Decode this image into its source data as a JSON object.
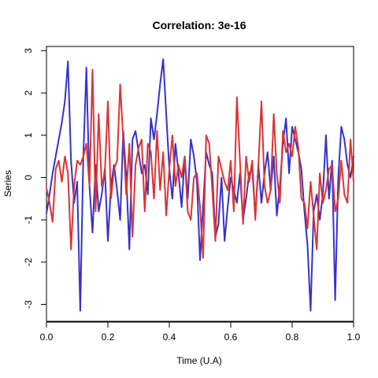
{
  "chart_data": {
    "type": "line",
    "title": "Correlation: 3e-16",
    "xlabel": "Time (U.A)",
    "ylabel": "Series",
    "xlim": [
      0,
      1
    ],
    "ylim": [
      -3.4,
      3.1
    ],
    "x_ticks": [
      {
        "value": 0.0,
        "label": "0.0"
      },
      {
        "value": 0.2,
        "label": "0.2"
      },
      {
        "value": 0.4,
        "label": "0.4"
      },
      {
        "value": 0.6,
        "label": "0.6"
      },
      {
        "value": 0.8,
        "label": "0.8"
      },
      {
        "value": 1.0,
        "label": "1.0"
      }
    ],
    "y_ticks": [
      {
        "value": -3,
        "label": "-3"
      },
      {
        "value": -2,
        "label": "-2"
      },
      {
        "value": -1,
        "label": "-1"
      },
      {
        "value": 0,
        "label": "0"
      },
      {
        "value": 1,
        "label": "1"
      },
      {
        "value": 2,
        "label": "2"
      },
      {
        "value": 3,
        "label": "3"
      }
    ],
    "grid": false,
    "legend": "none",
    "x": [
      0.0,
      0.01,
      0.02,
      0.03,
      0.04,
      0.05,
      0.06,
      0.07,
      0.08,
      0.09,
      0.1,
      0.11,
      0.12,
      0.13,
      0.14,
      0.15,
      0.16,
      0.17,
      0.18,
      0.19,
      0.2,
      0.21,
      0.22,
      0.23,
      0.24,
      0.25,
      0.26,
      0.27,
      0.28,
      0.29,
      0.3,
      0.31,
      0.32,
      0.33,
      0.34,
      0.35,
      0.36,
      0.37,
      0.38,
      0.39,
      0.4,
      0.41,
      0.42,
      0.43,
      0.44,
      0.45,
      0.46,
      0.47,
      0.48,
      0.49,
      0.5,
      0.51,
      0.52,
      0.53,
      0.54,
      0.55,
      0.56,
      0.57,
      0.58,
      0.59,
      0.6,
      0.61,
      0.62,
      0.63,
      0.64,
      0.65,
      0.66,
      0.67,
      0.68,
      0.69,
      0.7,
      0.71,
      0.72,
      0.73,
      0.74,
      0.75,
      0.76,
      0.77,
      0.78,
      0.79,
      0.8,
      0.81,
      0.82,
      0.83,
      0.84,
      0.85,
      0.86,
      0.87,
      0.88,
      0.89,
      0.9,
      0.91,
      0.92,
      0.93,
      0.94,
      0.95,
      0.96,
      0.97,
      0.98,
      0.99,
      1.0
    ],
    "series": [
      {
        "color": "#3333cc",
        "values": [
          -0.85,
          -0.4,
          0.1,
          0.5,
          0.9,
          1.3,
          1.8,
          2.75,
          0.4,
          -0.6,
          -0.1,
          -3.15,
          0.5,
          2.6,
          -0.2,
          -1.3,
          0.3,
          -0.8,
          -0.4,
          0.2,
          -1.5,
          -0.2,
          0.3,
          -0.3,
          -1.0,
          1.1,
          0.0,
          -1.7,
          0.9,
          1.1,
          0.6,
          0.1,
          0.3,
          -0.4,
          1.4,
          0.9,
          1.5,
          2.2,
          2.8,
          1.5,
          0.2,
          -0.5,
          0.8,
          0.1,
          -0.7,
          0.5,
          -0.5,
          0.9,
          0.5,
          -0.1,
          -1.95,
          -0.7,
          0.6,
          0.3,
          0.1,
          -1.4,
          -1.1,
          0.0,
          -1.5,
          -0.7,
          0.0,
          -0.3,
          -0.6,
          0.1,
          -1.0,
          -0.5,
          0.1,
          0.2,
          -0.9,
          0.3,
          -0.6,
          0.1,
          0.6,
          -0.3,
          0.5,
          -0.9,
          -0.2,
          0.8,
          1.4,
          0.1,
          1.2,
          0.9,
          0.6,
          0.2,
          -0.8,
          -1.6,
          -3.15,
          -0.8,
          -0.4,
          -1.0,
          -0.4,
          1.0,
          -0.5,
          0.4,
          -2.9,
          0.0,
          1.2,
          0.9,
          0.3,
          0.0,
          0.5
        ]
      },
      {
        "color": "#dd3333",
        "values": [
          -0.25,
          -0.6,
          -1.05,
          0.2,
          0.4,
          -0.1,
          0.5,
          0.1,
          -1.7,
          -0.2,
          0.4,
          0.3,
          0.5,
          0.8,
          -0.2,
          2.55,
          -0.8,
          1.5,
          -0.2,
          0.1,
          1.8,
          -0.5,
          0.2,
          0.4,
          2.2,
          0.9,
          -0.4,
          0.8,
          -1.4,
          0.3,
          0.7,
          0.9,
          -0.8,
          0.8,
          0.6,
          -0.5,
          1.1,
          -0.3,
          0.6,
          -0.9,
          0.2,
          1.0,
          -0.2,
          0.3,
          0.0,
          0.5,
          -0.8,
          -1.0,
          0.0,
          0.1,
          -0.7,
          -1.9,
          1.0,
          0.8,
          -0.3,
          -1.5,
          0.5,
          0.2,
          -0.1,
          -0.3,
          0.4,
          -0.8,
          1.9,
          0.4,
          -1.1,
          0.5,
          -0.1,
          0.4,
          -1.0,
          0.3,
          1.8,
          -0.2,
          -0.6,
          -0.3,
          1.5,
          0.1,
          -0.6,
          1.1,
          0.6,
          0.8,
          0.5,
          1.2,
          0.7,
          -0.5,
          -0.6,
          -1.2,
          -0.1,
          -0.9,
          -1.7,
          0.1,
          -0.6,
          -0.3,
          0.2,
          0.3,
          -0.8,
          -0.5,
          0.4,
          -0.4,
          -0.6,
          0.9,
          -0.1
        ]
      }
    ]
  }
}
